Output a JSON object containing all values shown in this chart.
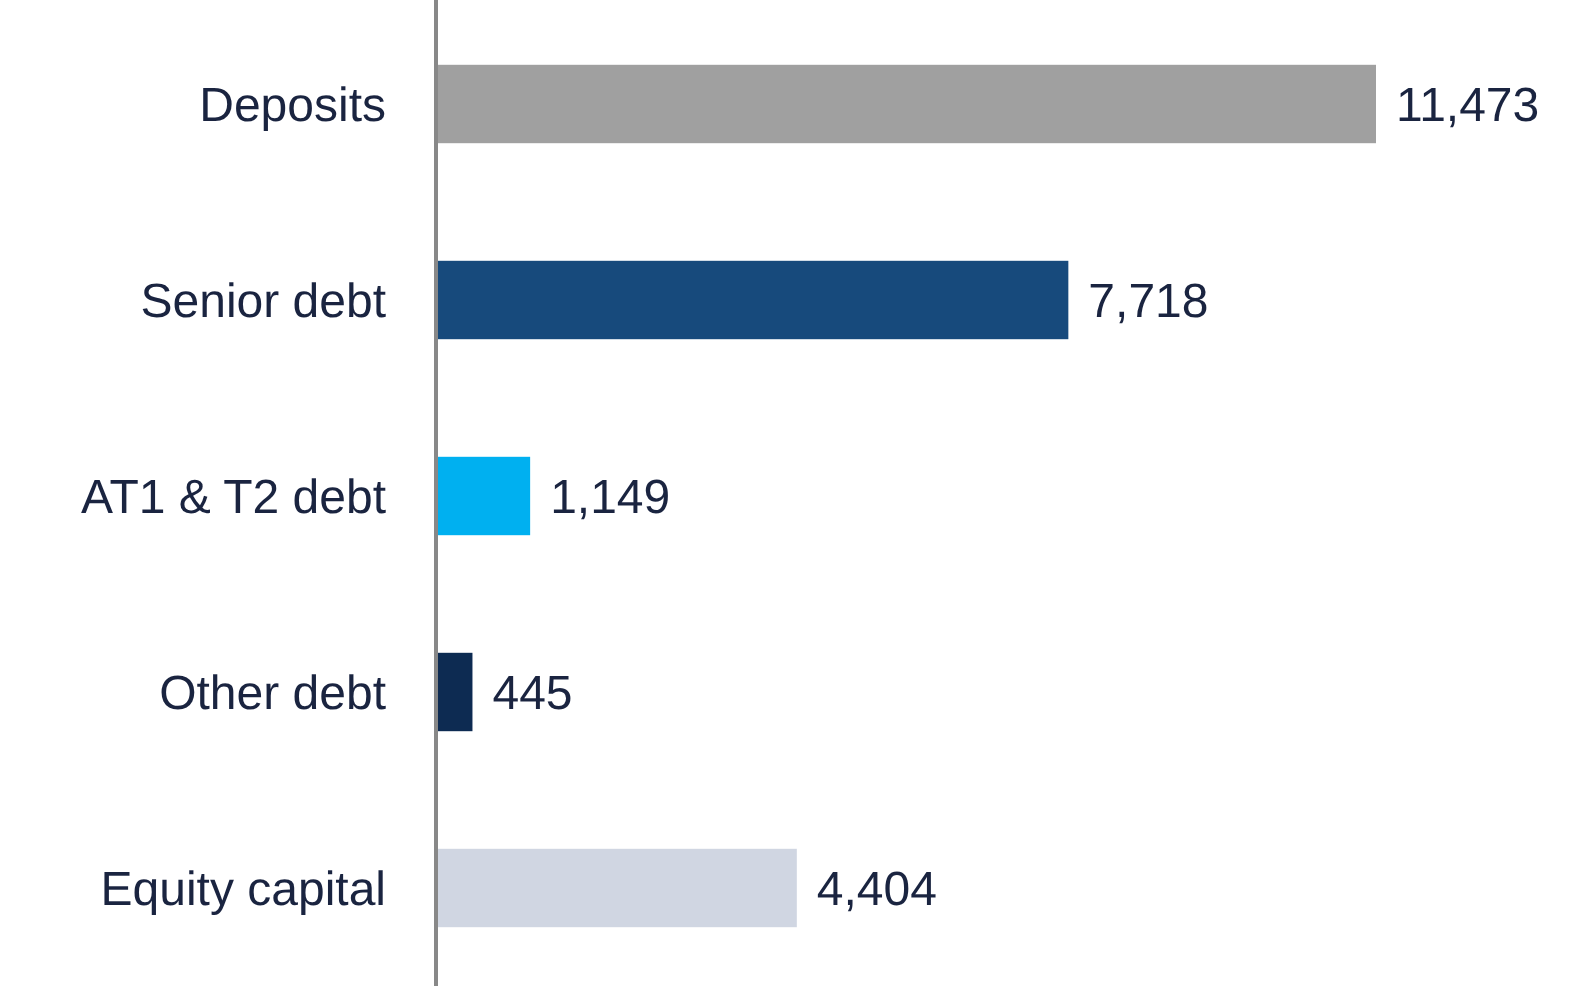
{
  "chart_data": {
    "type": "bar",
    "orientation": "horizontal",
    "categories": [
      "Deposits",
      "Senior debt",
      "AT1 & T2 debt",
      "Other debt",
      "Equity capital"
    ],
    "values": [
      11473,
      7718,
      1149,
      445,
      4404
    ],
    "colors": [
      "#a0a0a0",
      "#174a7c",
      "#00b0f0",
      "#0d2b52",
      "#d0d6e2"
    ],
    "value_labels": [
      "11,473",
      "7,718",
      "1,149",
      "445",
      "4,404"
    ]
  }
}
